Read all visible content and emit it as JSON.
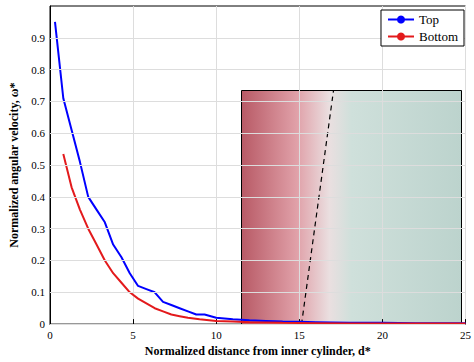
{
  "chart_data": {
    "type": "line",
    "x_label": "Normalized distance from inner cylinder, d*",
    "y_label": "Normalized angular velocity, ω*",
    "series": [
      {
        "name": "Top",
        "color": "#0000ff",
        "x": [
          0.3,
          0.8,
          1.3,
          1.8,
          2.3,
          2.8,
          3.3,
          3.8,
          4.3,
          4.8,
          5.3,
          5.8,
          6.3,
          6.8,
          7.3,
          7.8,
          8.3,
          8.8,
          9.3,
          10,
          11,
          12,
          13,
          14,
          15,
          16,
          17,
          18,
          20,
          22,
          24,
          25
        ],
        "values": [
          0.95,
          0.71,
          0.61,
          0.51,
          0.4,
          0.36,
          0.32,
          0.25,
          0.21,
          0.16,
          0.12,
          0.11,
          0.1,
          0.07,
          0.06,
          0.05,
          0.04,
          0.03,
          0.03,
          0.02,
          0.015,
          0.012,
          0.01,
          0.008,
          0.007,
          0.006,
          0.005,
          0.004,
          0.004,
          0.003,
          0.003,
          0.003
        ]
      },
      {
        "name": "Bottom",
        "color": "#e31a1c",
        "x": [
          0.8,
          1.3,
          1.8,
          2.3,
          2.8,
          3.3,
          3.8,
          4.3,
          4.8,
          5.3,
          5.8,
          6.3,
          6.8,
          7.3,
          7.8,
          8.3,
          9,
          10,
          11,
          12,
          14,
          16,
          18,
          20,
          25
        ],
        "values": [
          0.535,
          0.43,
          0.36,
          0.3,
          0.25,
          0.2,
          0.16,
          0.13,
          0.1,
          0.08,
          0.065,
          0.05,
          0.04,
          0.03,
          0.025,
          0.02,
          0.015,
          0.01,
          0.008,
          0.006,
          0.004,
          0.003,
          0.002,
          0.002,
          0.002
        ]
      }
    ],
    "xlim": [
      0,
      25
    ],
    "xticks": [
      0,
      5,
      10,
      15,
      20,
      25
    ],
    "ylim": [
      0,
      1
    ],
    "yticks": [
      0,
      0.1,
      0.2,
      0.3,
      0.4,
      0.5,
      0.6,
      0.7,
      0.8,
      0.9
    ],
    "grid": true,
    "legend": "top-right",
    "line_style": "solid"
  }
}
